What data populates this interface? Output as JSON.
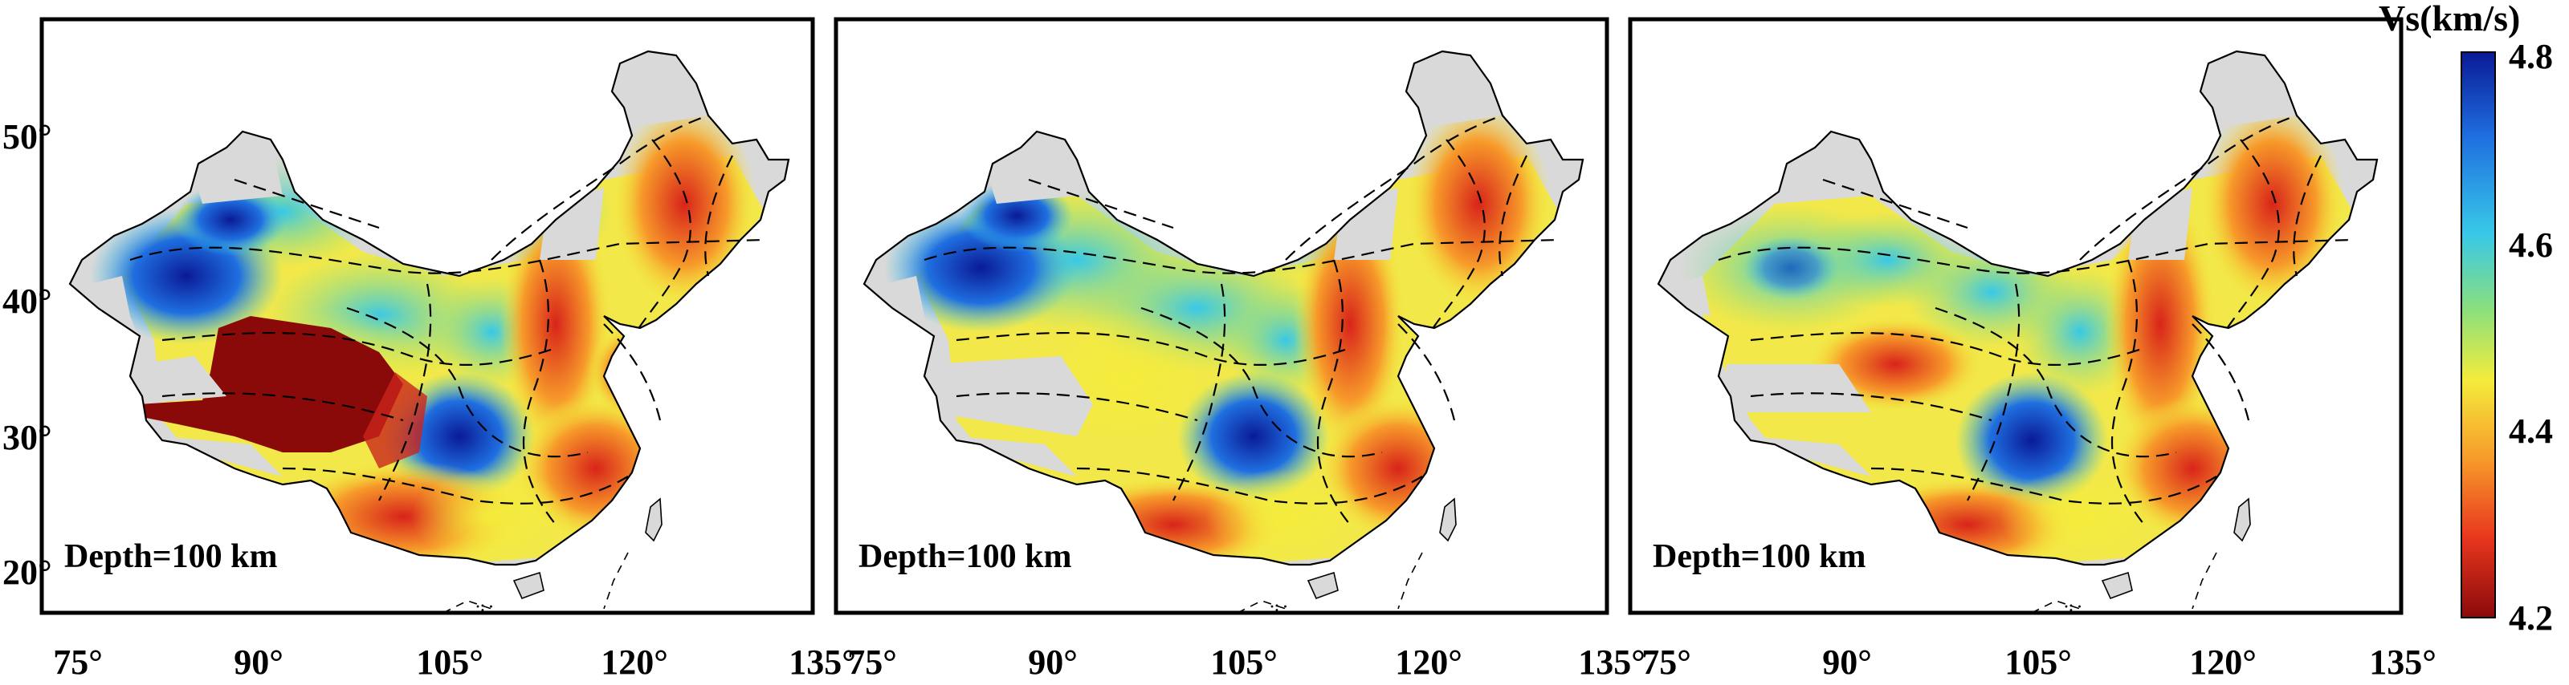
{
  "figure": {
    "panels": [
      {
        "id": "left",
        "depth_label": "Depth=100 km"
      },
      {
        "id": "middle",
        "depth_label": "Depth=100 km"
      },
      {
        "id": "right",
        "depth_label": "Depth=100 km"
      }
    ],
    "lon_ticks": [
      "75°",
      "90°",
      "105°",
      "120°",
      "135°"
    ],
    "lat_ticks": [
      "20°",
      "30°",
      "40°",
      "50°"
    ],
    "colorbar": {
      "title": "Vs(km/s)",
      "ticks": [
        "4.8",
        "4.6",
        "4.4",
        "4.2"
      ],
      "range": [
        4.2,
        4.8
      ],
      "stops": [
        "#0a1a96",
        "#1f6fe0",
        "#38c8e8",
        "#8ee07a",
        "#f4ec3c",
        "#f79a2a",
        "#e8361e",
        "#8a0a0a"
      ]
    },
    "colors": {
      "frame": "#000000",
      "land_no_data": "#d9d9d9",
      "boundary": "#000000"
    }
  }
}
